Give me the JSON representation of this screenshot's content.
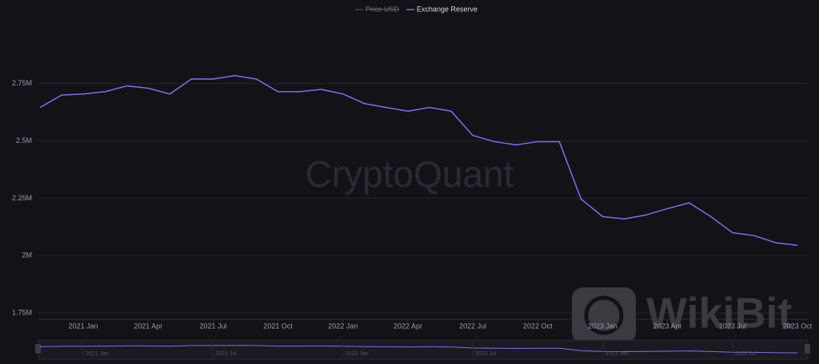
{
  "chart_data": {
    "type": "line",
    "legend": [
      "Price USD",
      "Exchange Reserve"
    ],
    "watermarks": [
      "CryptoQuant",
      "WikiBit"
    ],
    "x": [
      "2020-11",
      "2020-12",
      "2021-01",
      "2021-02",
      "2021-03",
      "2021-04",
      "2021-05",
      "2021-06",
      "2021-07",
      "2021-08",
      "2021-09",
      "2021-10",
      "2021-11",
      "2021-12",
      "2022-01",
      "2022-02",
      "2022-03",
      "2022-04",
      "2022-05",
      "2022-06",
      "2022-07",
      "2022-08",
      "2022-09",
      "2022-10",
      "2022-11",
      "2022-12",
      "2023-01",
      "2023-02",
      "2023-03",
      "2023-04",
      "2023-05",
      "2023-06",
      "2023-07",
      "2023-08",
      "2023-09",
      "2023-10"
    ],
    "series": [
      {
        "name": "Exchange Reserve",
        "color": "#7b6ff0",
        "values": [
          2646000,
          2700000,
          2705000,
          2715000,
          2740000,
          2730000,
          2705000,
          2770000,
          2770000,
          2785000,
          2770000,
          2715000,
          2715000,
          2725000,
          2705000,
          2663000,
          2646000,
          2630000,
          2646000,
          2630000,
          2524000,
          2497000,
          2483000,
          2497000,
          2497000,
          2247000,
          2170000,
          2160000,
          2177000,
          2205000,
          2230000,
          2170000,
          2100000,
          2087000,
          2056000,
          2045000
        ]
      }
    ],
    "xlim": [
      "2020-11",
      "2023-10"
    ],
    "xticks": [
      {
        "value": "2021-01",
        "label": "2021 Jan"
      },
      {
        "value": "2021-04",
        "label": "2021 Apr"
      },
      {
        "value": "2021-07",
        "label": "2021 Jul"
      },
      {
        "value": "2021-10",
        "label": "2021 Oct"
      },
      {
        "value": "2022-01",
        "label": "2022 Jan"
      },
      {
        "value": "2022-04",
        "label": "2022 Apr"
      },
      {
        "value": "2022-07",
        "label": "2022 Jul"
      },
      {
        "value": "2022-10",
        "label": "2022 Oct"
      },
      {
        "value": "2023-01",
        "label": "2023 Jan"
      },
      {
        "value": "2023-04",
        "label": "2023 Apr"
      },
      {
        "value": "2023-07",
        "label": "2023 Jul"
      },
      {
        "value": "2023-10",
        "label": "2023 Oct"
      }
    ],
    "ylim": [
      1722000,
      3000000
    ],
    "yticks": [
      {
        "value": 1750000,
        "label": "1.75M"
      },
      {
        "value": 2000000,
        "label": "2M"
      },
      {
        "value": 2250000,
        "label": "2.25M"
      },
      {
        "value": 2500000,
        "label": "2.5M"
      },
      {
        "value": 2750000,
        "label": "2.75M"
      }
    ],
    "grid": true
  }
}
